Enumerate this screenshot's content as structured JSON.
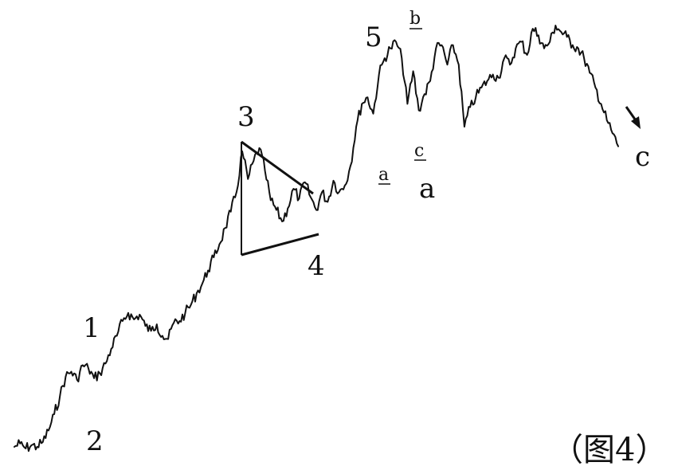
{
  "chart_data": {
    "type": "line",
    "title": "",
    "xlabel": "",
    "ylabel": "",
    "caption": "（图4）",
    "grid": false,
    "legend": "none",
    "series": [
      {
        "values": [
          0.02,
          0.04,
          0.01,
          0.03,
          0.02,
          0.05,
          0.12,
          0.22,
          0.33,
          0.45,
          0.48,
          0.43,
          0.52,
          0.5,
          0.44,
          0.47,
          0.53,
          0.62,
          0.7,
          0.79,
          0.84,
          0.8,
          0.83,
          0.76,
          0.73,
          0.77,
          0.7,
          0.68,
          0.78,
          0.79,
          0.84,
          0.89,
          0.96,
          1.02,
          1.1,
          1.18,
          1.26,
          1.36,
          1.46,
          1.58,
          1.83,
          1.66,
          1.77,
          1.85,
          1.71,
          1.53,
          1.47,
          1.4,
          1.48,
          1.6,
          1.54,
          1.64,
          1.55,
          1.47,
          1.58,
          1.52,
          1.65,
          1.58,
          1.62,
          1.74,
          1.98,
          2.12,
          2.16,
          2.06,
          2.3,
          2.4,
          2.46,
          2.5,
          2.4,
          2.12,
          2.32,
          2.08,
          2.18,
          2.26,
          2.46,
          2.48,
          2.36,
          2.48,
          2.36,
          1.98,
          2.1,
          2.16,
          2.22,
          2.26,
          2.3,
          2.28,
          2.4,
          2.36,
          2.46,
          2.5,
          2.42,
          2.58,
          2.54,
          2.46,
          2.5,
          2.6,
          2.56,
          2.53,
          2.48,
          2.46,
          2.4,
          2.31,
          2.22,
          2.12,
          2.02,
          1.94,
          1.86
        ]
      }
    ],
    "annotations": [
      {
        "text": "1"
      },
      {
        "text": "2"
      },
      {
        "text": "3"
      },
      {
        "text": "4"
      },
      {
        "text": "5"
      },
      {
        "text": "a"
      },
      {
        "text": "b"
      },
      {
        "text": "c"
      },
      {
        "text": "a"
      },
      {
        "text": "c"
      }
    ]
  }
}
